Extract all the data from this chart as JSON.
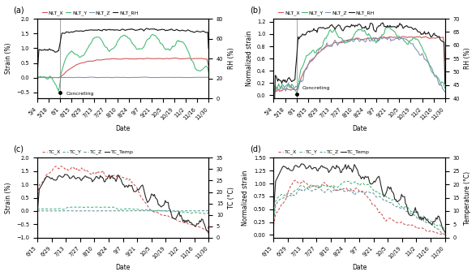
{
  "panel_labels": [
    "(a)",
    "(b)",
    "(c)",
    "(d)"
  ],
  "date_ticks_ab": [
    "5/4",
    "5/18",
    "6/1",
    "6/15",
    "6/29",
    "7/13",
    "7/27",
    "8/10",
    "8/24",
    "9/7",
    "9/21",
    "10/5",
    "10/19",
    "11/2",
    "11/16",
    "11/30"
  ],
  "date_ticks_cd": [
    "6/15",
    "6/29",
    "7/13",
    "7/27",
    "8/10",
    "8/24",
    "9/7",
    "9/21",
    "10/5",
    "10/19",
    "11/2",
    "11/16",
    "11/30"
  ],
  "colors": {
    "NLT_X": "#d05050",
    "NLT_Y": "#40b870",
    "NLT_Z": "#8090b0",
    "NLT_RH": "#181818",
    "TC_X": "#d05050",
    "TC_Y": "#40b870",
    "TC_Z": "#6090a0",
    "TC_Temp": "#282828"
  },
  "fig_bg": "#ffffff"
}
